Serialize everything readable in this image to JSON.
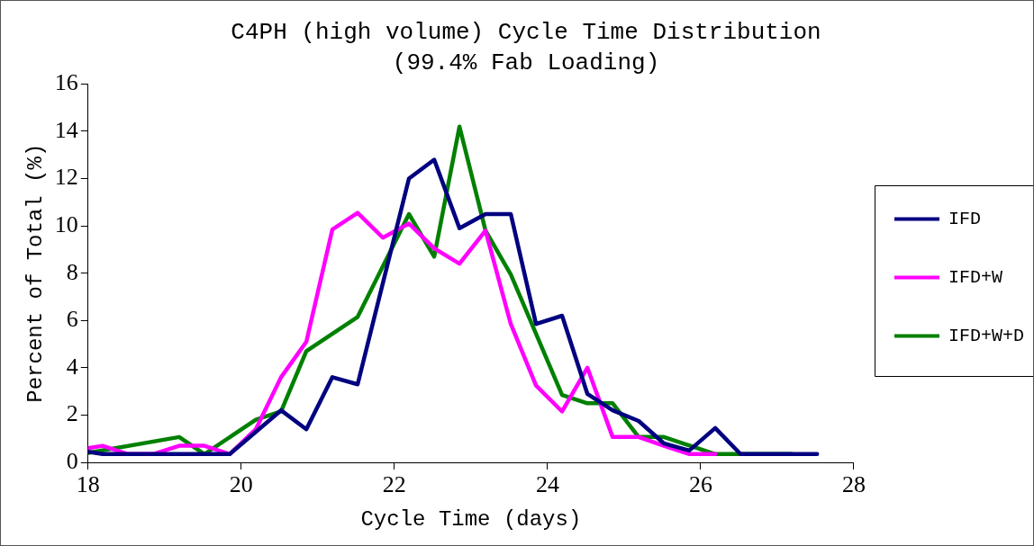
{
  "chart_data": {
    "type": "line",
    "title": "C4PH (high volume) Cycle Time Distribution",
    "subtitle": "(99.4% Fab Loading)",
    "xlabel": "Cycle Time (days)",
    "ylabel": "Percent of Total (%)",
    "xlim": [
      18,
      28
    ],
    "xticks": [
      18,
      20,
      22,
      24,
      26,
      28
    ],
    "ylim": [
      0,
      16
    ],
    "yticks": [
      0,
      2,
      4,
      6,
      8,
      10,
      12,
      14,
      16
    ],
    "grid": false,
    "legend": "right",
    "marker": "none",
    "line_style": "solid",
    "series": [
      {
        "name": "IFD",
        "color": "#000080",
        "x": [
          18,
          18.19,
          19.19,
          19.85,
          20.52,
          20.85,
          21.19,
          21.52,
          22.19,
          22.52,
          22.85,
          23.19,
          23.52,
          23.85,
          24.19,
          24.52,
          24.85,
          25.19,
          25.52,
          25.85,
          26.19,
          26.52,
          27.52
        ],
        "values": [
          0.45,
          0.35,
          0.35,
          0.35,
          2.2,
          1.4,
          3.6,
          3.3,
          12.0,
          12.8,
          9.9,
          10.5,
          10.5,
          5.85,
          6.2,
          2.9,
          2.2,
          1.75,
          0.8,
          0.5,
          1.45,
          0.35,
          0.35
        ]
      },
      {
        "name": "IFD+W",
        "color": "#ff00ff",
        "x": [
          18,
          18.19,
          18.52,
          18.85,
          19.19,
          19.52,
          19.85,
          20.19,
          20.52,
          20.85,
          21.19,
          21.52,
          21.85,
          22.19,
          22.52,
          22.85,
          23.19,
          23.52,
          23.85,
          24.19,
          24.52,
          24.85,
          25.19,
          25.52,
          25.85,
          26.19
        ],
        "values": [
          0.6,
          0.7,
          0.35,
          0.35,
          0.7,
          0.7,
          0.35,
          1.4,
          3.6,
          5.1,
          9.85,
          10.55,
          9.5,
          10.1,
          9.05,
          8.4,
          9.8,
          5.85,
          3.25,
          2.15,
          4.0,
          1.07,
          1.07,
          0.7,
          0.35,
          0.35
        ]
      },
      {
        "name": "IFD+W+D",
        "color": "#008000",
        "x": [
          18,
          19.19,
          19.52,
          20.19,
          20.52,
          20.85,
          21.52,
          22.19,
          22.52,
          22.85,
          23.19,
          23.52,
          24.19,
          24.52,
          24.85,
          25.19,
          25.52,
          26.19,
          27.19
        ],
        "values": [
          0.4,
          1.07,
          0.35,
          1.8,
          2.15,
          4.7,
          6.15,
          10.5,
          8.7,
          14.2,
          9.8,
          7.95,
          2.85,
          2.5,
          2.5,
          1.07,
          1.07,
          0.35,
          0.35
        ]
      }
    ]
  }
}
